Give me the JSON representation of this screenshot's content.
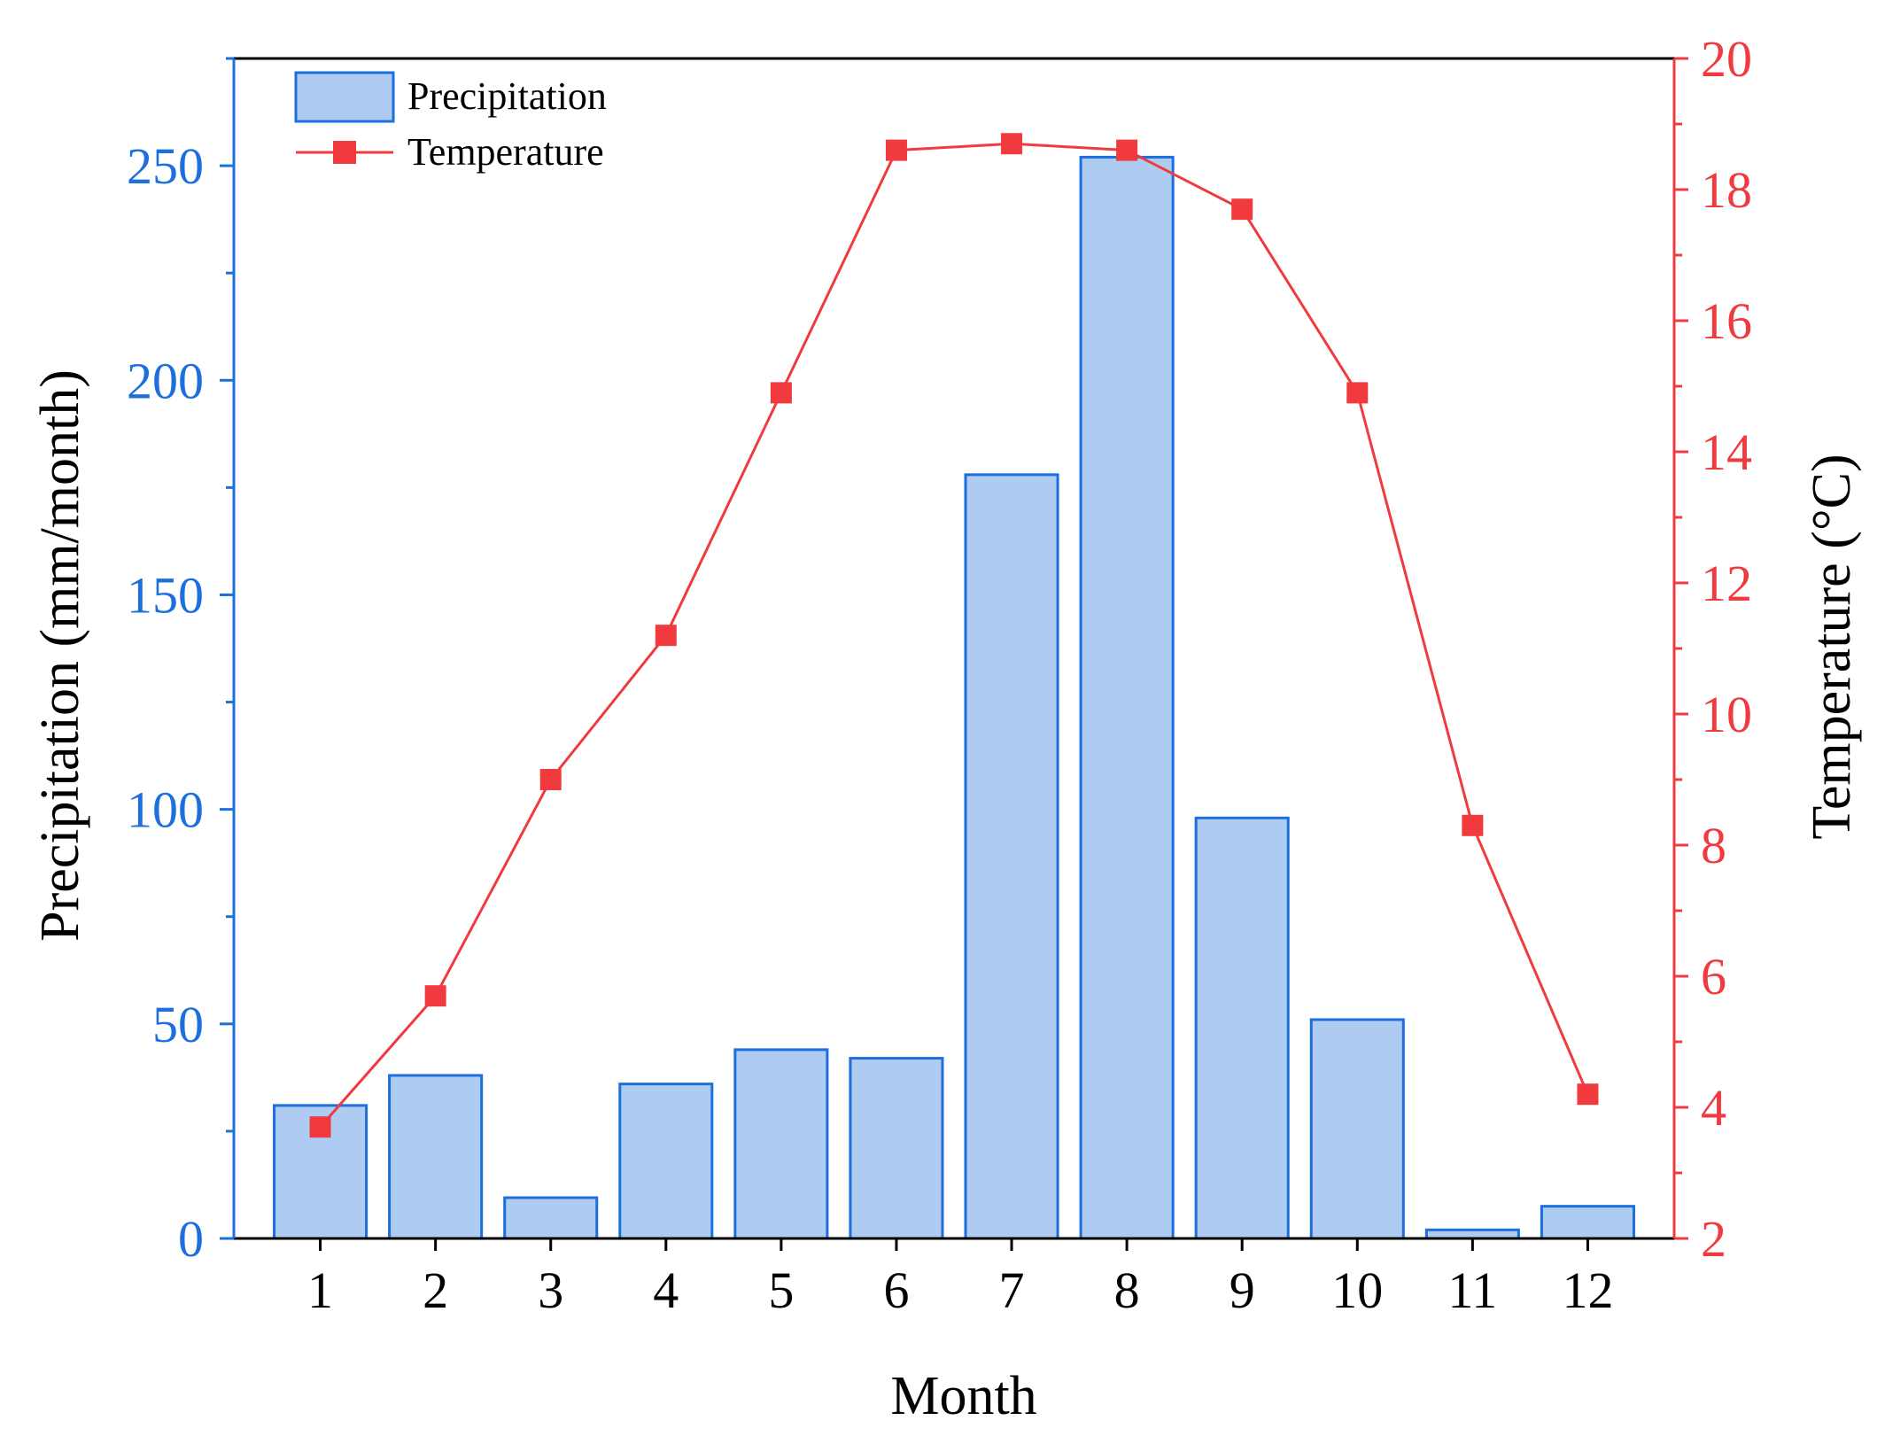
{
  "chart_data": {
    "type": "bar",
    "categories": [
      "1",
      "2",
      "3",
      "4",
      "5",
      "6",
      "7",
      "8",
      "9",
      "10",
      "11",
      "12"
    ],
    "series": [
      {
        "name": "Precipitation",
        "kind": "bar",
        "axis": "left",
        "values": [
          31,
          38,
          9.5,
          36,
          44,
          42,
          178,
          252,
          98,
          51,
          2,
          7.5
        ]
      },
      {
        "name": "Temperature",
        "kind": "line",
        "axis": "right",
        "values": [
          3.7,
          5.7,
          9.0,
          11.2,
          14.9,
          18.6,
          18.7,
          18.6,
          17.7,
          14.9,
          8.3,
          4.2
        ]
      }
    ],
    "xlabel": "Month",
    "ylabel_left": "Precipitation (mm/month)",
    "ylabel_right": "Temperature (°C)",
    "ylim_left": [
      0,
      275
    ],
    "yticks_left": [
      "0",
      "50",
      "100",
      "150",
      "200",
      "250"
    ],
    "ylim_right": [
      2,
      20
    ],
    "yticks_right": [
      "2",
      "4",
      "6",
      "8",
      "10",
      "12",
      "14",
      "16",
      "18",
      "20"
    ],
    "legend": {
      "position": "top-left",
      "entries": [
        "Precipitation",
        "Temperature"
      ]
    },
    "grid": false,
    "colors": {
      "bar_fill": "#aecbf2",
      "bar_edge": "#1c6fdc",
      "left_axis": "#1c6fdc",
      "right_axis": "#f03a3e",
      "line": "#f03a3e",
      "text": "#000000"
    }
  }
}
